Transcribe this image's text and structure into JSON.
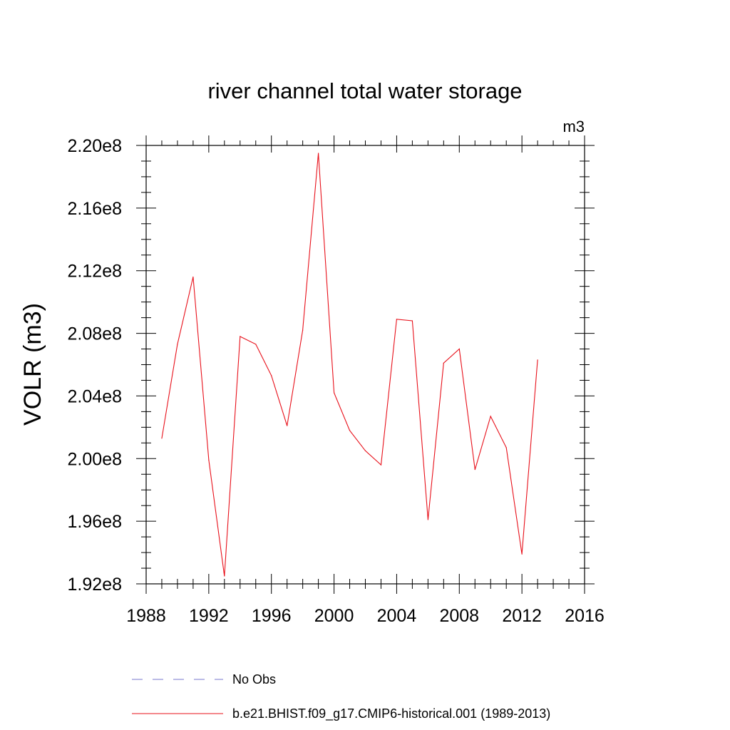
{
  "chart_data": {
    "type": "line",
    "title": "river channel total water storage",
    "units": "m3",
    "ylabel": "VOLR  (m3)",
    "xlabel": "",
    "xlim": [
      1988,
      2016
    ],
    "ylim": [
      192000000,
      220000000
    ],
    "x_ticks": [
      1988,
      1992,
      1996,
      2000,
      2004,
      2008,
      2012,
      2016
    ],
    "x_tick_labels": [
      "1988",
      "1992",
      "1996",
      "2000",
      "2004",
      "2008",
      "2012",
      "2016"
    ],
    "y_ticks": [
      192000000,
      196000000,
      200000000,
      204000000,
      208000000,
      212000000,
      216000000,
      220000000
    ],
    "y_tick_labels": [
      "1.92e8",
      "1.96e8",
      "2.00e8",
      "2.04e8",
      "2.08e8",
      "2.12e8",
      "2.16e8",
      "2.20e8"
    ],
    "grid": false,
    "legend_position": "bottom",
    "series": [
      {
        "name": "b.e21.BHIST.f09_g17.CMIP6-historical.001 (1989-2013)",
        "color": "#e8101a",
        "style": "solid",
        "x": [
          1989,
          1990,
          1991,
          1992,
          1993,
          1994,
          1995,
          1996,
          1997,
          1998,
          1999,
          2000,
          2001,
          2002,
          2003,
          2004,
          2005,
          2006,
          2007,
          2008,
          2009,
          2010,
          2011,
          2012,
          2013
        ],
        "values": [
          201300000,
          207300000,
          211600000,
          199900000,
          192500000,
          207800000,
          207300000,
          205300000,
          202100000,
          208200000,
          219500000,
          204200000,
          201800000,
          200500000,
          199600000,
          208900000,
          208800000,
          196100000,
          206100000,
          207000000,
          199300000,
          202700000,
          200700000,
          193900000,
          206300000
        ]
      }
    ],
    "legend": [
      {
        "label": "No Obs",
        "color": "#7777cc",
        "style": "dashed"
      },
      {
        "label": "b.e21.BHIST.f09_g17.CMIP6-historical.001 (1989-2013)",
        "color": "#e8101a",
        "style": "solid"
      }
    ]
  }
}
